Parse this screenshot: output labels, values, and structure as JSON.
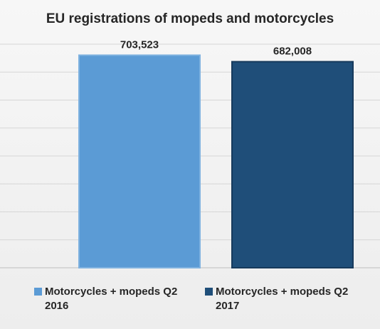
{
  "chart_data": {
    "type": "bar",
    "title": "EU registrations of mopeds and motorcycles",
    "categories": [
      "Motorcycles + mopeds Q2 2016",
      "Motorcycles + mopeds Q2 2017"
    ],
    "values": [
      703523,
      682008
    ],
    "value_labels": [
      "703,523",
      "682,008"
    ],
    "colors": [
      "#5b9bd5",
      "#1f4e79"
    ],
    "ylim": [
      0,
      740000
    ],
    "grid": true,
    "legend": {
      "placement": "bottom",
      "items": [
        {
          "label": "Motorcycles + mopeds Q2 2016",
          "color": "#5b9bd5"
        },
        {
          "label": "Motorcycles + mopeds Q2 2017",
          "color": "#1f4e79"
        }
      ]
    }
  }
}
